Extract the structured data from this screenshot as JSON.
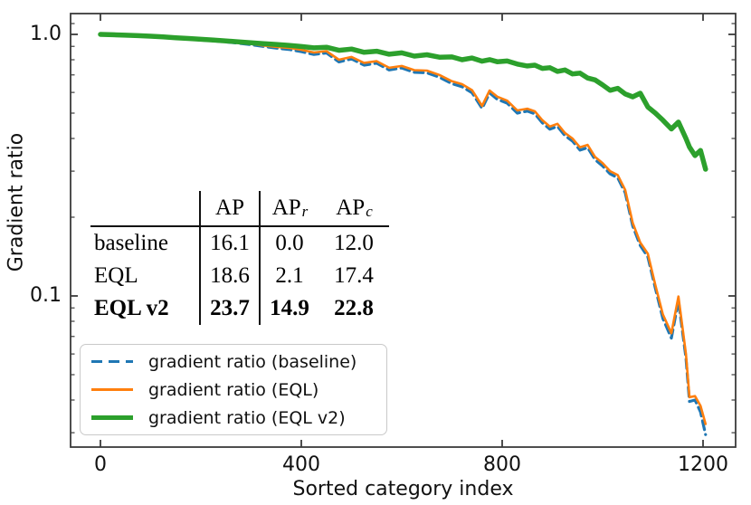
{
  "figure_colors": {
    "baseline_blue": "#1f77b4",
    "eql_orange": "#ff7f0e",
    "eqlv2_green": "#2ca02c",
    "spine": "#3b3b3b",
    "legend_border": "#c9c9c9"
  },
  "chart_data": {
    "type": "line",
    "title": "",
    "xlabel": "Sorted category index",
    "ylabel": "Gradient ratio",
    "yscale": "log",
    "xlim": [
      -60,
      1265
    ],
    "ylim": [
      0.027,
      1.27
    ],
    "grid": false,
    "legend_position": "lower left",
    "x_ticks": [
      0,
      400,
      800,
      1200
    ],
    "x_tick_labels": [
      "0",
      "400",
      "800",
      "1200"
    ],
    "y_major_ticks": [
      1.0,
      0.1
    ],
    "y_tick_labels": [
      "1.0",
      "0.1"
    ],
    "y_minor_ticks": [
      1.1,
      0.9,
      0.8,
      0.7,
      0.6,
      0.5,
      0.4,
      0.3,
      0.2,
      0.09,
      0.08,
      0.07,
      0.06,
      0.05,
      0.04,
      0.03
    ],
    "x": [
      0,
      25,
      50,
      75,
      100,
      125,
      150,
      175,
      200,
      225,
      250,
      275,
      300,
      325,
      350,
      375,
      400,
      425,
      450,
      475,
      500,
      525,
      550,
      575,
      600,
      625,
      650,
      675,
      700,
      720,
      740,
      760,
      775,
      790,
      810,
      830,
      850,
      865,
      880,
      895,
      910,
      925,
      940,
      955,
      970,
      985,
      1000,
      1015,
      1030,
      1045,
      1060,
      1075,
      1090,
      1105,
      1120,
      1137,
      1151,
      1166,
      1173,
      1184,
      1195,
      1205
    ],
    "series": [
      {
        "name": "gradient ratio (baseline)",
        "color": "#1f77b4",
        "style": "dashed",
        "width": 3.2,
        "values": [
          1.0,
          0.996,
          0.992,
          0.987,
          0.981,
          0.974,
          0.966,
          0.959,
          0.951,
          0.944,
          0.935,
          0.925,
          0.913,
          0.899,
          0.886,
          0.876,
          0.859,
          0.838,
          0.849,
          0.785,
          0.806,
          0.763,
          0.776,
          0.731,
          0.744,
          0.716,
          0.713,
          0.686,
          0.648,
          0.631,
          0.598,
          0.521,
          0.597,
          0.565,
          0.546,
          0.5,
          0.509,
          0.497,
          0.459,
          0.434,
          0.445,
          0.41,
          0.391,
          0.361,
          0.369,
          0.332,
          0.314,
          0.293,
          0.283,
          0.248,
          0.185,
          0.156,
          0.141,
          0.107,
          0.082,
          0.069,
          0.096,
          0.058,
          0.0395,
          0.04,
          0.036,
          0.0295
        ]
      },
      {
        "name": "gradient ratio (EQL)",
        "color": "#ff7f0e",
        "style": "solid",
        "width": 2.6,
        "values": [
          1.0,
          0.996,
          0.992,
          0.988,
          0.982,
          0.975,
          0.968,
          0.961,
          0.954,
          0.947,
          0.939,
          0.93,
          0.92,
          0.907,
          0.896,
          0.888,
          0.873,
          0.853,
          0.863,
          0.8,
          0.82,
          0.778,
          0.79,
          0.745,
          0.757,
          0.73,
          0.727,
          0.7,
          0.662,
          0.645,
          0.612,
          0.533,
          0.61,
          0.578,
          0.558,
          0.512,
          0.52,
          0.508,
          0.47,
          0.444,
          0.455,
          0.42,
          0.4,
          0.37,
          0.378,
          0.34,
          0.322,
          0.3,
          0.29,
          0.254,
          0.19,
          0.16,
          0.145,
          0.11,
          0.085,
          0.072,
          0.0995,
          0.06,
          0.041,
          0.0414,
          0.038,
          0.0324
        ]
      },
      {
        "name": "gradient ratio (EQL v2)",
        "color": "#2ca02c",
        "style": "solid",
        "width": 5.5,
        "values": [
          1.0,
          0.997,
          0.993,
          0.989,
          0.984,
          0.978,
          0.971,
          0.965,
          0.958,
          0.951,
          0.944,
          0.936,
          0.929,
          0.922,
          0.915,
          0.908,
          0.899,
          0.888,
          0.893,
          0.869,
          0.879,
          0.854,
          0.862,
          0.84,
          0.85,
          0.826,
          0.836,
          0.818,
          0.82,
          0.8,
          0.812,
          0.79,
          0.801,
          0.786,
          0.791,
          0.77,
          0.757,
          0.763,
          0.741,
          0.746,
          0.722,
          0.731,
          0.706,
          0.711,
          0.681,
          0.67,
          0.641,
          0.611,
          0.622,
          0.592,
          0.577,
          0.596,
          0.528,
          0.5,
          0.47,
          0.435,
          0.462,
          0.4,
          0.371,
          0.344,
          0.36,
          0.305
        ]
      }
    ]
  },
  "table": {
    "columns": [
      {
        "text": "",
        "sub": ""
      },
      {
        "text": "AP",
        "sub": ""
      },
      {
        "text": "AP",
        "sub": "r"
      },
      {
        "text": "AP",
        "sub": "c"
      }
    ],
    "rows": [
      {
        "label": "baseline",
        "values": [
          "16.1",
          "0.0",
          "12.0"
        ],
        "bold": false
      },
      {
        "label": "EQL",
        "values": [
          "18.6",
          "2.1",
          "17.4"
        ],
        "bold": false
      },
      {
        "label": "EQL v2",
        "values": [
          "23.7",
          "14.9",
          "22.8"
        ],
        "bold": true
      }
    ]
  },
  "legend": {
    "items": [
      {
        "label": "gradient ratio (baseline)"
      },
      {
        "label": "gradient ratio (EQL)"
      },
      {
        "label": "gradient ratio (EQL v2)"
      }
    ]
  }
}
